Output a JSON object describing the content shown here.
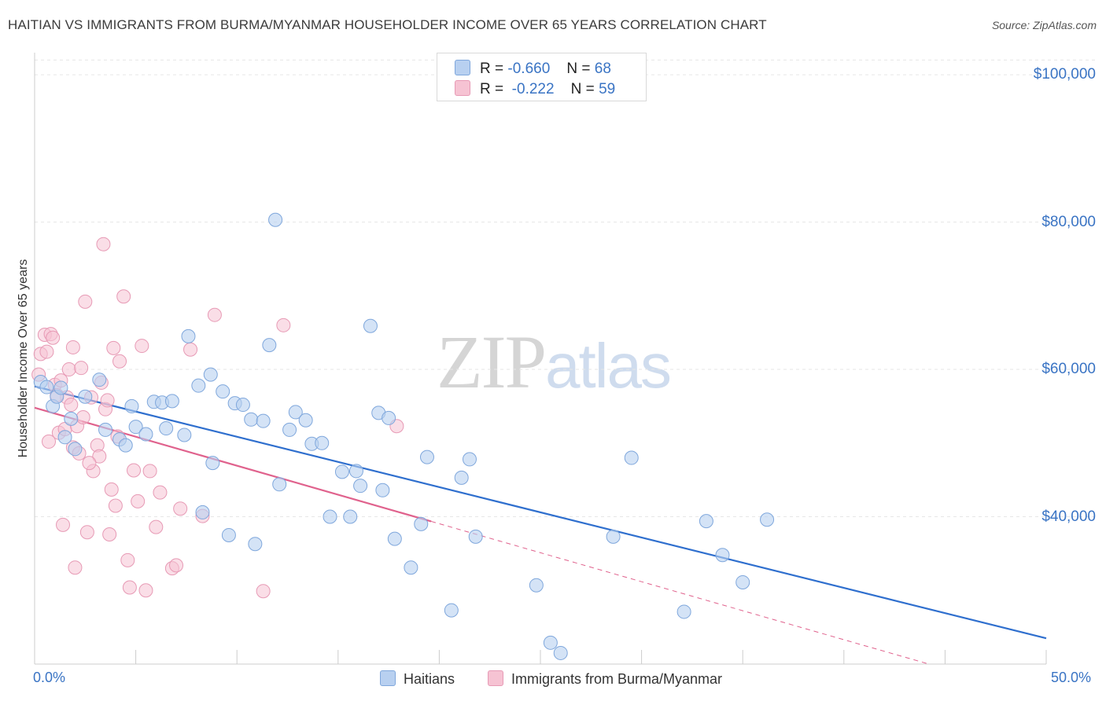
{
  "header": {
    "title": "HAITIAN VS IMMIGRANTS FROM BURMA/MYANMAR HOUSEHOLDER INCOME OVER 65 YEARS CORRELATION CHART",
    "source": "Source: ZipAtlas.com"
  },
  "watermark": {
    "zip": "ZIP",
    "atlas": "atlas"
  },
  "legend": {
    "haitians": {
      "r_label": "R =",
      "r_value": "-0.660",
      "n_label": "N =",
      "n_value": "68"
    },
    "burma": {
      "r_label": "R =",
      "r_value": "-0.222",
      "n_label": "N =",
      "n_value": "59"
    }
  },
  "bottom_legend": {
    "haitians": "Haitians",
    "burma": "Immigrants from Burma/Myanmar"
  },
  "colors": {
    "blue_fill": "#b8d0f0",
    "blue_stroke": "#7fa7dc",
    "blue_line": "#2f6fce",
    "pink_fill": "#f6c3d3",
    "pink_stroke": "#e79ab5",
    "pink_line": "#e0628d",
    "axis_label": "#3a74c4",
    "grid": "#e6e6e6"
  },
  "chart_data": {
    "type": "scatter",
    "title": "HAITIAN VS IMMIGRANTS FROM BURMA/MYANMAR HOUSEHOLDER INCOME OVER 65 YEARS CORRELATION CHART",
    "xlabel": "",
    "ylabel": "Householder Income Over 65 years",
    "xlim": [
      0,
      50
    ],
    "ylim": [
      20000,
      103000
    ],
    "x_tick_labels": {
      "min": "0.0%",
      "max": "50.0%"
    },
    "y_ticks": [
      {
        "value": 40000,
        "label": "$40,000"
      },
      {
        "value": 60000,
        "label": "$60,000"
      },
      {
        "value": 80000,
        "label": "$80,000"
      },
      {
        "value": 100000,
        "label": "$100,000"
      }
    ],
    "grid": true,
    "series": [
      {
        "name": "Haitians",
        "r": -0.66,
        "n": 68,
        "trend": {
          "x0": 0,
          "y0": 57700,
          "x1": 50,
          "y1": 23500,
          "dashed_from": null
        },
        "points": [
          [
            0.3,
            58300
          ],
          [
            0.6,
            57600
          ],
          [
            0.9,
            55000
          ],
          [
            1.1,
            56300
          ],
          [
            1.3,
            57500
          ],
          [
            1.5,
            50800
          ],
          [
            1.8,
            53300
          ],
          [
            2.0,
            49200
          ],
          [
            2.5,
            56300
          ],
          [
            3.2,
            58600
          ],
          [
            3.5,
            51800
          ],
          [
            4.2,
            50500
          ],
          [
            4.5,
            49700
          ],
          [
            4.8,
            55000
          ],
          [
            5.0,
            52200
          ],
          [
            5.5,
            51200
          ],
          [
            5.9,
            55600
          ],
          [
            6.3,
            55500
          ],
          [
            6.5,
            52000
          ],
          [
            6.8,
            55700
          ],
          [
            7.4,
            51100
          ],
          [
            7.6,
            64500
          ],
          [
            8.1,
            57800
          ],
          [
            8.3,
            40600
          ],
          [
            8.7,
            59300
          ],
          [
            8.8,
            47300
          ],
          [
            9.3,
            57000
          ],
          [
            9.6,
            37500
          ],
          [
            9.9,
            55400
          ],
          [
            10.3,
            55200
          ],
          [
            10.7,
            53200
          ],
          [
            10.9,
            36300
          ],
          [
            11.3,
            53000
          ],
          [
            11.6,
            63300
          ],
          [
            11.9,
            80300
          ],
          [
            12.1,
            44400
          ],
          [
            12.6,
            51800
          ],
          [
            12.9,
            54200
          ],
          [
            13.4,
            53100
          ],
          [
            13.7,
            49900
          ],
          [
            14.2,
            50000
          ],
          [
            14.6,
            40000
          ],
          [
            15.2,
            46100
          ],
          [
            15.6,
            40000
          ],
          [
            15.9,
            46200
          ],
          [
            16.1,
            44200
          ],
          [
            16.6,
            65900
          ],
          [
            17.0,
            54100
          ],
          [
            17.2,
            43600
          ],
          [
            17.5,
            53400
          ],
          [
            17.8,
            37000
          ],
          [
            18.6,
            33100
          ],
          [
            19.1,
            39000
          ],
          [
            19.4,
            48100
          ],
          [
            20.6,
            27300
          ],
          [
            21.1,
            45300
          ],
          [
            21.5,
            47800
          ],
          [
            21.8,
            37300
          ],
          [
            24.8,
            30700
          ],
          [
            25.5,
            22900
          ],
          [
            28.6,
            37300
          ],
          [
            29.5,
            48000
          ],
          [
            32.1,
            27100
          ],
          [
            33.2,
            39400
          ],
          [
            34.0,
            34800
          ],
          [
            35.0,
            31100
          ],
          [
            36.2,
            39600
          ],
          [
            26.0,
            21500
          ]
        ]
      },
      {
        "name": "Immigrants from Burma/Myanmar",
        "r": -0.222,
        "n": 59,
        "trend": {
          "x0": 0,
          "y0": 54800,
          "x1": 44.2,
          "y1": 20000,
          "dashed_from": 19.6
        },
        "points": [
          [
            0.2,
            59300
          ],
          [
            0.3,
            62100
          ],
          [
            0.5,
            64700
          ],
          [
            0.6,
            62400
          ],
          [
            0.8,
            64800
          ],
          [
            0.9,
            64300
          ],
          [
            1.0,
            57900
          ],
          [
            1.2,
            51400
          ],
          [
            1.3,
            58500
          ],
          [
            1.5,
            51900
          ],
          [
            1.6,
            56200
          ],
          [
            1.7,
            60000
          ],
          [
            1.8,
            55200
          ],
          [
            1.9,
            49400
          ],
          [
            2.1,
            52300
          ],
          [
            2.2,
            48600
          ],
          [
            2.3,
            60200
          ],
          [
            2.4,
            53500
          ],
          [
            2.5,
            69200
          ],
          [
            2.6,
            37900
          ],
          [
            2.8,
            56200
          ],
          [
            2.9,
            46200
          ],
          [
            3.1,
            49700
          ],
          [
            3.2,
            48200
          ],
          [
            3.3,
            58200
          ],
          [
            3.4,
            77000
          ],
          [
            3.5,
            54600
          ],
          [
            3.7,
            37600
          ],
          [
            3.8,
            43700
          ],
          [
            3.9,
            62900
          ],
          [
            4.1,
            50900
          ],
          [
            4.2,
            61100
          ],
          [
            4.4,
            69900
          ],
          [
            4.6,
            34100
          ],
          [
            4.7,
            30400
          ],
          [
            4.9,
            46300
          ],
          [
            5.1,
            42100
          ],
          [
            5.3,
            63200
          ],
          [
            5.5,
            30000
          ],
          [
            5.7,
            46200
          ],
          [
            6.0,
            38600
          ],
          [
            6.2,
            43300
          ],
          [
            6.8,
            33000
          ],
          [
            7.0,
            33400
          ],
          [
            7.2,
            41100
          ],
          [
            7.7,
            62700
          ],
          [
            8.3,
            40100
          ],
          [
            8.9,
            67400
          ],
          [
            11.3,
            29900
          ],
          [
            12.3,
            66000
          ],
          [
            17.9,
            52300
          ],
          [
            1.4,
            38900
          ],
          [
            2.0,
            33100
          ],
          [
            4.0,
            41500
          ],
          [
            0.7,
            50200
          ],
          [
            1.1,
            56500
          ],
          [
            2.7,
            47300
          ],
          [
            3.6,
            55800
          ],
          [
            1.9,
            63000
          ]
        ]
      }
    ]
  }
}
